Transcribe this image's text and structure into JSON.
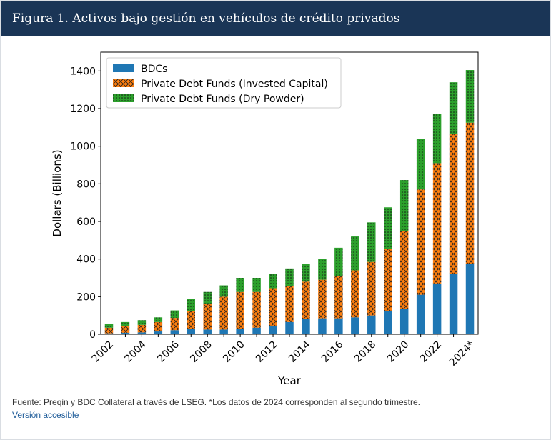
{
  "figure": {
    "title": "Figura 1. Activos bajo gestión en vehículos de crédito privados",
    "source_note": "Fuente: Preqin y BDC Collateral a través de LSEG. *Los datos de 2024 corresponden al segundo trimestre.",
    "accessible_link": "Versión accesible"
  },
  "colors": {
    "header_bg": "#1a3556",
    "bdc": "#1f77b4",
    "invested": "#ff7f0e",
    "dry": "#2ca02c"
  },
  "chart_data": {
    "type": "bar",
    "stacked": true,
    "xlabel": "Year",
    "ylabel": "Dollars (Billions)",
    "ylim": [
      0,
      1500
    ],
    "yticks": [
      0,
      200,
      400,
      600,
      800,
      1000,
      1200,
      1400
    ],
    "categories": [
      "2002",
      "2003",
      "2004",
      "2005",
      "2006",
      "2007",
      "2008",
      "2009",
      "2010",
      "2011",
      "2012",
      "2013",
      "2014",
      "2015",
      "2016",
      "2017",
      "2018",
      "2019",
      "2020",
      "2021",
      "2022",
      "2023",
      "2024*"
    ],
    "xtick_labels": [
      "2002",
      "2004",
      "2006",
      "2008",
      "2010",
      "2012",
      "2014",
      "2016",
      "2018",
      "2020",
      "2022",
      "2024*"
    ],
    "legend_position": "top-left",
    "series": [
      {
        "name": "BDCs",
        "hatch": "solid",
        "values": [
          5,
          8,
          10,
          15,
          22,
          28,
          25,
          25,
          30,
          35,
          45,
          65,
          80,
          85,
          85,
          90,
          100,
          125,
          135,
          210,
          270,
          320,
          375
        ]
      },
      {
        "name": "Private Debt Funds (Invested Capital)",
        "hatch": "crosshatch",
        "values": [
          30,
          35,
          40,
          50,
          65,
          95,
          135,
          175,
          195,
          190,
          200,
          190,
          200,
          205,
          225,
          250,
          285,
          330,
          415,
          560,
          640,
          745,
          750
        ]
      },
      {
        "name": "Private Debt Funds (Dry Powder)",
        "hatch": "dots",
        "values": [
          22,
          22,
          25,
          25,
          40,
          65,
          65,
          60,
          75,
          75,
          75,
          95,
          95,
          110,
          150,
          180,
          210,
          220,
          270,
          270,
          260,
          275,
          280
        ]
      }
    ]
  }
}
